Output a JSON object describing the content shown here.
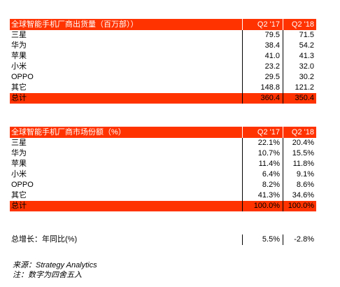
{
  "shipments": {
    "title": "全球智能手机厂商出货量（百万部））",
    "col1": "Q2 '17",
    "col2": "Q2 '18",
    "rows": [
      {
        "vendor": "三星",
        "q2_17": "79.5",
        "q2_18": "71.5"
      },
      {
        "vendor": "华为",
        "q2_17": "38.4",
        "q2_18": "54.2"
      },
      {
        "vendor": "苹果",
        "q2_17": "41.0",
        "q2_18": "41.3"
      },
      {
        "vendor": "小米",
        "q2_17": "23.2",
        "q2_18": "32.0"
      },
      {
        "vendor": "OPPO",
        "q2_17": "29.5",
        "q2_18": "30.2"
      },
      {
        "vendor": "其它",
        "q2_17": "148.8",
        "q2_18": "121.2"
      }
    ],
    "total": {
      "label": "总计",
      "q2_17": "360.4",
      "q2_18": "350.4"
    }
  },
  "share": {
    "title": "全球智能手机厂商市场份额（%）",
    "col1": "Q2 '17",
    "col2": "Q2 '18",
    "rows": [
      {
        "vendor": "三星",
        "q2_17": "22.1%",
        "q2_18": "20.4%"
      },
      {
        "vendor": "华为",
        "q2_17": "10.7%",
        "q2_18": "15.5%"
      },
      {
        "vendor": "苹果",
        "q2_17": "11.4%",
        "q2_18": "11.8%"
      },
      {
        "vendor": "小米",
        "q2_17": "6.4%",
        "q2_18": "9.1%"
      },
      {
        "vendor": "OPPO",
        "q2_17": "8.2%",
        "q2_18": "8.6%"
      },
      {
        "vendor": "其它",
        "q2_17": "41.3%",
        "q2_18": "34.6%"
      }
    ],
    "total": {
      "label": "总计",
      "q2_17": "100.0%",
      "q2_18": "100.0%"
    }
  },
  "growth": {
    "label": "总增长：年同比(%)",
    "q2_17": "5.5%",
    "q2_18": "-2.8%"
  },
  "notes": {
    "source": "来源：Strategy Analytics",
    "footnote": "注：数字为四舍五入"
  },
  "colors": {
    "header_bg": "#ff3300",
    "header_text": "#ffffff"
  }
}
